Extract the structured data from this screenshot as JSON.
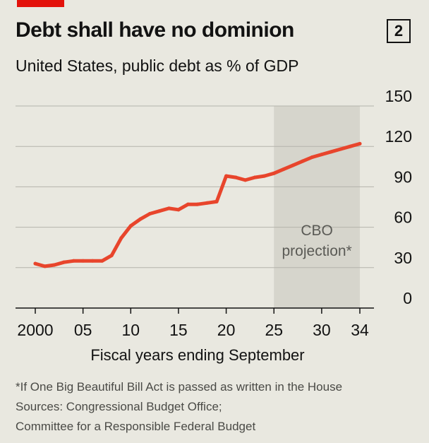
{
  "header": {
    "title": "Debt shall have no dominion",
    "chart_number": "2",
    "subtitle": "United States, public debt as % of GDP"
  },
  "colors": {
    "background": "#e9e8e0",
    "line": "#e8452c",
    "tag": "#e3120b",
    "projection_band": "#d6d5cc",
    "grid": "#b4b4ab"
  },
  "chart_data": {
    "type": "line",
    "title": "Debt shall have no dominion",
    "subtitle": "United States, public debt as % of GDP",
    "xlabel": "Fiscal years ending September",
    "ylabel": "",
    "xlim": [
      1999,
      2035
    ],
    "ylim": [
      0,
      150
    ],
    "y_ticks": [
      0,
      30,
      60,
      90,
      120,
      150
    ],
    "x_ticks": [
      {
        "value": 2000,
        "label": "2000"
      },
      {
        "value": 2005,
        "label": "05"
      },
      {
        "value": 2010,
        "label": "10"
      },
      {
        "value": 2015,
        "label": "15"
      },
      {
        "value": 2020,
        "label": "20"
      },
      {
        "value": 2025,
        "label": "25"
      },
      {
        "value": 2030,
        "label": "30"
      },
      {
        "value": 2034,
        "label": "34"
      }
    ],
    "projection": {
      "start": 2025,
      "end": 2034,
      "label_line1": "CBO",
      "label_line2": "projection*"
    },
    "series": [
      {
        "name": "Public debt as % of GDP",
        "x": [
          2000,
          2001,
          2002,
          2003,
          2004,
          2005,
          2006,
          2007,
          2008,
          2009,
          2010,
          2011,
          2012,
          2013,
          2014,
          2015,
          2016,
          2017,
          2018,
          2019,
          2020,
          2021,
          2022,
          2023,
          2024,
          2025,
          2026,
          2027,
          2028,
          2029,
          2030,
          2031,
          2032,
          2033,
          2034
        ],
        "values": [
          33,
          31,
          32,
          34,
          35,
          35,
          35,
          35,
          39,
          52,
          61,
          66,
          70,
          72,
          74,
          73,
          77,
          77,
          78,
          79,
          98,
          97,
          95,
          97,
          98,
          100,
          103,
          106,
          109,
          112,
          114,
          116,
          118,
          120,
          122
        ]
      }
    ]
  },
  "footnotes": {
    "note": "*If One Big Beautiful Bill Act is passed as written in the House",
    "sources_line1": "Sources: Congressional Budget Office;",
    "sources_line2": "Committee for a Responsible Federal Budget"
  }
}
